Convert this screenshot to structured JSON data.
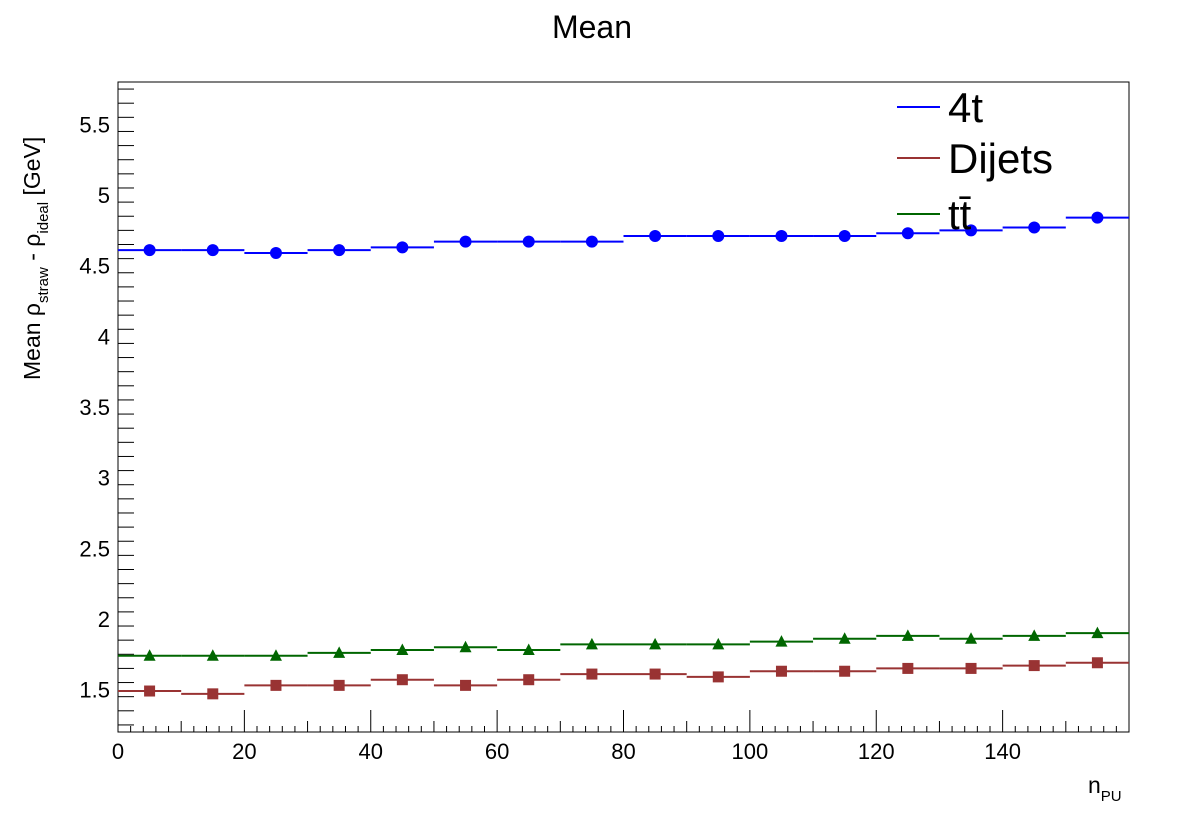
{
  "chart_data": {
    "type": "scatter",
    "title": "Mean",
    "xlabel": {
      "main": "n",
      "sub": "PU"
    },
    "ylabel": {
      "parts": [
        "Mean  ρ",
        "straw",
        " - ρ",
        "ideal",
        " [GeV]"
      ]
    },
    "xlim": [
      0,
      160
    ],
    "ylim": [
      1.2,
      5.8
    ],
    "x_ticks": [
      0,
      20,
      40,
      60,
      80,
      100,
      120,
      140
    ],
    "x_tick_labels": [
      "0",
      "20",
      "40",
      "60",
      "80",
      "100",
      "120",
      "140"
    ],
    "y_ticks": [
      1.5,
      2,
      2.5,
      3,
      3.5,
      4,
      4.5,
      5,
      5.5
    ],
    "y_tick_labels": [
      "1.5",
      "2",
      "2.5",
      "3",
      "3.5",
      "4",
      "4.5",
      "5",
      "5.5"
    ],
    "bin_width": 10,
    "x": [
      5,
      15,
      25,
      35,
      45,
      55,
      65,
      75,
      85,
      95,
      105,
      115,
      125,
      135,
      145,
      155
    ],
    "legend_position": "top-right",
    "grid": false,
    "series": [
      {
        "name": "4t",
        "color": "#0000ff",
        "marker": "circle",
        "values": [
          4.61,
          4.61,
          4.59,
          4.61,
          4.63,
          4.67,
          4.67,
          4.67,
          4.71,
          4.71,
          4.71,
          4.71,
          4.73,
          4.75,
          4.77,
          4.84
        ]
      },
      {
        "name": "Dijets",
        "color": "#993333",
        "marker": "square",
        "values": [
          1.49,
          1.47,
          1.53,
          1.53,
          1.57,
          1.53,
          1.57,
          1.61,
          1.61,
          1.59,
          1.63,
          1.63,
          1.65,
          1.65,
          1.67,
          1.69
        ]
      },
      {
        "name": "tt̄",
        "color": "#006600",
        "marker": "triangle",
        "values": [
          1.74,
          1.74,
          1.74,
          1.76,
          1.78,
          1.8,
          1.78,
          1.82,
          1.82,
          1.82,
          1.84,
          1.86,
          1.88,
          1.86,
          1.88,
          1.9
        ]
      }
    ]
  }
}
